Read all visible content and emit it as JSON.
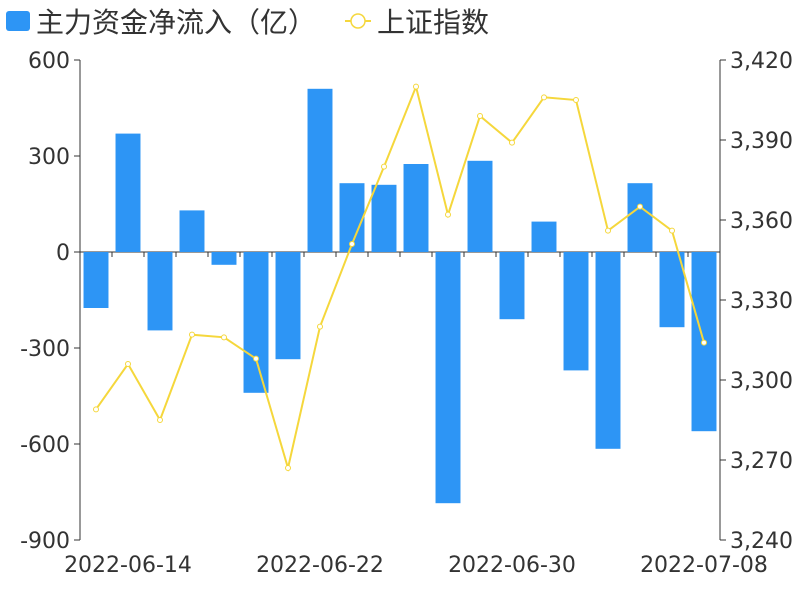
{
  "chart_data": {
    "type": "bar",
    "dates": [
      "2022-06-13",
      "2022-06-14",
      "2022-06-15",
      "2022-06-16",
      "2022-06-17",
      "2022-06-20",
      "2022-06-21",
      "2022-06-22",
      "2022-06-23",
      "2022-06-24",
      "2022-06-27",
      "2022-06-28",
      "2022-06-29",
      "2022-06-30",
      "2022-07-01",
      "2022-07-04",
      "2022-07-05",
      "2022-07-06",
      "2022-07-07",
      "2022-07-08"
    ],
    "series": [
      {
        "name": "主力资金净流入（亿）",
        "type": "bar",
        "axis": "left",
        "color": "#2d95f5",
        "values": [
          -175,
          370,
          -245,
          130,
          -40,
          -440,
          -335,
          510,
          215,
          210,
          275,
          -785,
          285,
          -210,
          95,
          -370,
          -615,
          215,
          -235,
          -560
        ]
      },
      {
        "name": "上证指数",
        "type": "line",
        "axis": "right",
        "color": "#f5d73c",
        "values": [
          3289,
          3306,
          3285,
          3317,
          3316,
          3308,
          3267,
          3320,
          3351,
          3380,
          3410,
          3362,
          3399,
          3389,
          3406,
          3405,
          3356,
          3365,
          3356,
          3314
        ]
      }
    ],
    "x_tick_labels": [
      "2022-06-14",
      "2022-06-22",
      "2022-06-30",
      "2022-07-08"
    ],
    "left_axis": {
      "ticks": [
        "600",
        "300",
        "0",
        "-300",
        "-600",
        "-900"
      ],
      "range": [
        -900,
        600
      ]
    },
    "right_axis": {
      "ticks": [
        "3,420",
        "3,390",
        "3,360",
        "3,330",
        "3,300",
        "3,270",
        "3,240"
      ],
      "range": [
        3240,
        3420
      ]
    },
    "legend": "top-left",
    "grid": false
  }
}
